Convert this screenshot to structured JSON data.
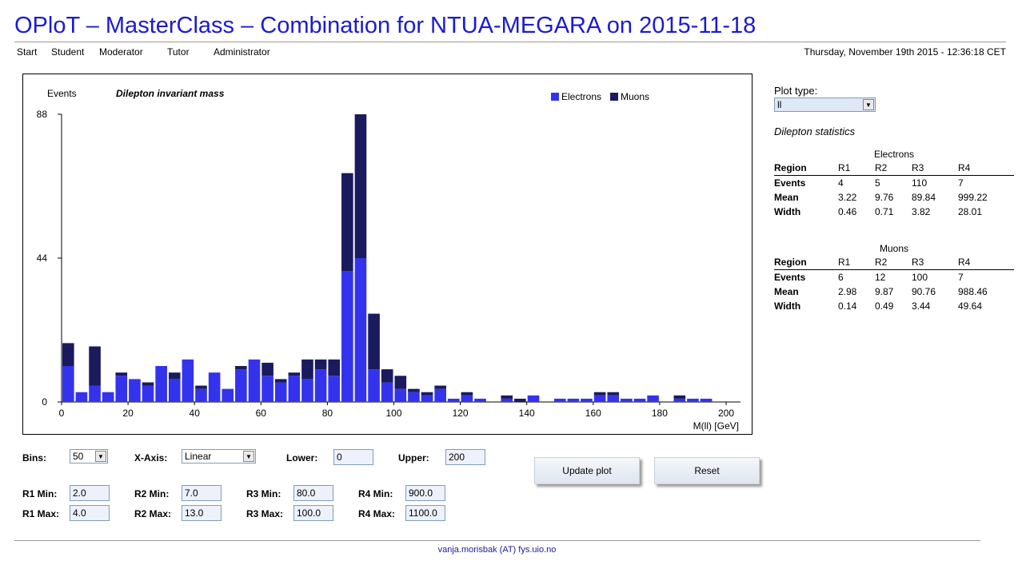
{
  "title": "OPloT – MasterClass – Combination for NTUA-MEGARA on 2015-11-18",
  "nav": [
    "Start",
    "Student",
    "Moderator",
    "Tutor",
    "Administrator"
  ],
  "datetime": "Thursday, November 19th 2015 - 12:36:18 CET",
  "chart_data": {
    "type": "bar",
    "stacked": true,
    "title": "Dilepton invariant mass",
    "ylabel": "Events",
    "xlabel": "M(ll) [GeV]",
    "xlim": [
      0,
      200
    ],
    "ylim": [
      0,
      88
    ],
    "yticks": [
      0,
      44,
      88
    ],
    "xticks": [
      0,
      20,
      40,
      60,
      80,
      100,
      120,
      140,
      160,
      180,
      200
    ],
    "legend_position": "top-right",
    "bin_width": 4,
    "x": [
      2,
      6,
      10,
      14,
      18,
      22,
      26,
      30,
      34,
      38,
      42,
      46,
      50,
      54,
      58,
      62,
      66,
      70,
      74,
      78,
      82,
      86,
      90,
      94,
      98,
      102,
      106,
      110,
      114,
      118,
      122,
      126,
      130,
      134,
      138,
      142,
      146,
      150,
      154,
      158,
      162,
      166,
      170,
      174,
      178,
      182,
      186,
      190,
      194,
      198
    ],
    "series": [
      {
        "name": "Electrons",
        "color": "#3333ee",
        "values": [
          11,
          3,
          5,
          3,
          8,
          7,
          5,
          11,
          7,
          13,
          4,
          9,
          4,
          10,
          13,
          8,
          6,
          8,
          7,
          10,
          8,
          40,
          44,
          10,
          6,
          4,
          3,
          2,
          4,
          1,
          2,
          1,
          0,
          1,
          0,
          2,
          0,
          1,
          1,
          1,
          2,
          2,
          1,
          1,
          2,
          0,
          1,
          1,
          1,
          0
        ]
      },
      {
        "name": "Muons",
        "color": "#1a1a5e",
        "values": [
          7,
          0,
          12,
          0,
          1,
          0,
          1,
          0,
          2,
          0,
          1,
          0,
          0,
          1,
          0,
          4,
          1,
          1,
          6,
          3,
          5,
          30,
          44,
          17,
          4,
          4,
          1,
          1,
          1,
          0,
          1,
          0,
          0,
          1,
          1,
          0,
          0,
          0,
          0,
          0,
          1,
          1,
          0,
          0,
          0,
          0,
          1,
          0,
          0,
          0
        ]
      }
    ]
  },
  "sidebar": {
    "plot_type_label": "Plot type:",
    "plot_type_value": "ll",
    "stats_title": "Dilepton statistics",
    "electrons": {
      "caption": "Electrons",
      "header": [
        "Region",
        "R1",
        "R2",
        "R3",
        "R4"
      ],
      "rows": [
        [
          "Events",
          "4",
          "5",
          "110",
          "7"
        ],
        [
          "Mean",
          "3.22",
          "9.76",
          "89.84",
          "999.22"
        ],
        [
          "Width",
          "0.46",
          "0.71",
          "3.82",
          "28.01"
        ]
      ]
    },
    "muons": {
      "caption": "Muons",
      "header": [
        "Region",
        "R1",
        "R2",
        "R3",
        "R4"
      ],
      "rows": [
        [
          "Events",
          "6",
          "12",
          "100",
          "7"
        ],
        [
          "Mean",
          "2.98",
          "9.87",
          "90.76",
          "988.46"
        ],
        [
          "Width",
          "0.14",
          "0.49",
          "3.44",
          "49.64"
        ]
      ]
    }
  },
  "controls": {
    "bins_label": "Bins:",
    "bins_value": "50",
    "xaxis_label": "X-Axis:",
    "xaxis_value": "Linear",
    "lower_label": "Lower:",
    "lower_value": "0",
    "upper_label": "Upper:",
    "upper_value": "200",
    "r1_min_label": "R1 Min:",
    "r1_min": "2.0",
    "r1_max_label": "R1 Max:",
    "r1_max": "4.0",
    "r2_min_label": "R2 Min:",
    "r2_min": "7.0",
    "r2_max_label": "R2 Max:",
    "r2_max": "13.0",
    "r3_min_label": "R3 Min:",
    "r3_min": "80.0",
    "r3_max_label": "R3 Max:",
    "r3_max": "100.0",
    "r4_min_label": "R4 Min:",
    "r4_min": "900.0",
    "r4_max_label": "R4 Max:",
    "r4_max": "1100.0",
    "update_button": "Update plot",
    "reset_button": "Reset"
  },
  "footer": {
    "contact": "vanja.morisbak (AT) fys.uio.no"
  }
}
